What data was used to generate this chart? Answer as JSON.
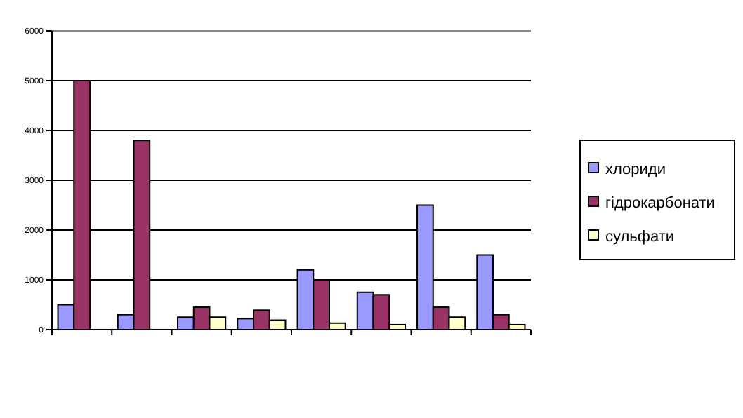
{
  "chart_data": {
    "type": "bar",
    "categories": [
      null,
      null,
      null,
      null,
      null,
      null,
      null,
      null
    ],
    "series": [
      {
        "name": "хлориди",
        "color": "#9999ff",
        "values": [
          500,
          300,
          250,
          220,
          1200,
          750,
          2500,
          1500
        ]
      },
      {
        "name": "гідрокарбонати",
        "color": "#993366",
        "values": [
          5000,
          3800,
          450,
          390,
          1000,
          700,
          450,
          300
        ]
      },
      {
        "name": "сульфати",
        "color": "#ffffcc",
        "values": [
          null,
          null,
          250,
          190,
          130,
          100,
          250,
          100
        ]
      }
    ],
    "ylim": [
      0,
      6000
    ],
    "yticks": [
      0,
      1000,
      2000,
      3000,
      4000,
      5000,
      6000
    ],
    "grid": "y",
    "legend": "right"
  }
}
